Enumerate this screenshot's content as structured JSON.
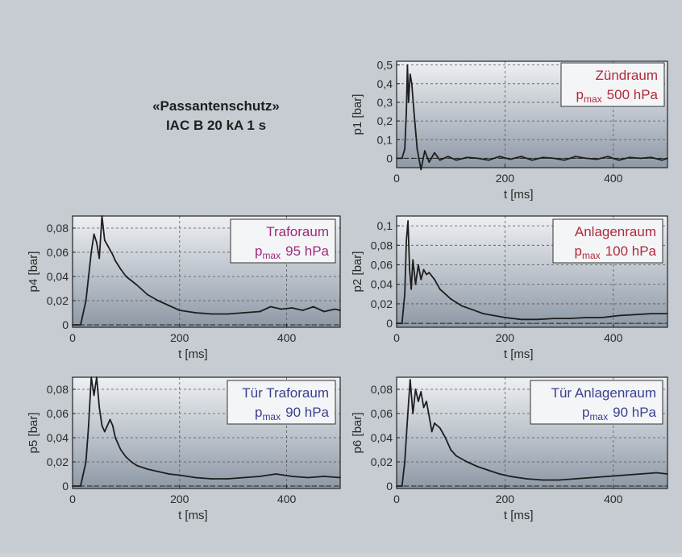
{
  "caption": {
    "title_line1": "«Passantenschutz»",
    "title_line2": "IAC B 20 kA 1 s"
  },
  "colors": {
    "page_background": "#c7ccd2",
    "plot_background_top": "#eef0f3",
    "plot_background_bottom": "#8e99a6",
    "trace": "#1e1e1e",
    "label_red": "#b02a3a",
    "label_magenta": "#a02a78",
    "label_blue": "#3a3f8f"
  },
  "chart_data": [
    {
      "type": "line",
      "ylabel": "p1 [bar]",
      "xlabel": "t [ms]",
      "xlim": [
        0,
        500
      ],
      "ylim": [
        -0.05,
        0.52
      ],
      "xticks": [
        0,
        200,
        400
      ],
      "xtick_labels": [
        "0",
        "200",
        "400"
      ],
      "yticks": [
        0,
        0.1,
        0.2,
        0.3,
        0.4,
        0.5
      ],
      "ytick_labels": [
        "0",
        "0,1",
        "0,2",
        "0,3",
        "0,4",
        "0,5"
      ],
      "grid": true,
      "room": "Zündraum",
      "pmax_prefix": "p",
      "pmax_sub": "max",
      "pmax_value": "500 hPa",
      "label_color": "#b02a3a",
      "x": [
        0,
        10,
        15,
        18,
        20,
        22,
        25,
        28,
        32,
        38,
        45,
        52,
        60,
        70,
        80,
        95,
        110,
        130,
        150,
        170,
        190,
        210,
        230,
        250,
        270,
        290,
        310,
        330,
        350,
        370,
        390,
        410,
        430,
        450,
        470,
        490,
        500
      ],
      "values": [
        0,
        0,
        0.05,
        0.25,
        0.5,
        0.3,
        0.45,
        0.4,
        0.25,
        0.05,
        -0.06,
        0.04,
        -0.02,
        0.03,
        -0.01,
        0.01,
        -0.01,
        0.005,
        0,
        -0.01,
        0.01,
        -0.005,
        0.01,
        -0.01,
        0.005,
        0,
        -0.01,
        0.01,
        0,
        -0.005,
        0.01,
        -0.01,
        0.005,
        0,
        0.005,
        -0.01,
        0
      ]
    },
    {
      "type": "line",
      "ylabel": "p4 [bar]",
      "xlabel": "t [ms]",
      "xlim": [
        0,
        500
      ],
      "ylim": [
        -0.002,
        0.09
      ],
      "xticks": [
        0,
        200,
        400
      ],
      "xtick_labels": [
        "0",
        "200",
        "400"
      ],
      "yticks": [
        0,
        0.02,
        0.04,
        0.06,
        0.08
      ],
      "ytick_labels": [
        "0",
        "0,02",
        "0,04",
        "0,06",
        "0,08"
      ],
      "grid": true,
      "room": "Traforaum",
      "pmax_prefix": "p",
      "pmax_sub": "max",
      "pmax_value": "95 hPa",
      "label_color": "#a02a78",
      "x": [
        0,
        15,
        25,
        35,
        40,
        45,
        50,
        55,
        60,
        65,
        70,
        75,
        80,
        90,
        100,
        120,
        140,
        160,
        180,
        200,
        230,
        260,
        290,
        320,
        350,
        370,
        390,
        410,
        430,
        450,
        470,
        490,
        500
      ],
      "values": [
        0,
        0,
        0.02,
        0.06,
        0.075,
        0.068,
        0.055,
        0.09,
        0.07,
        0.066,
        0.062,
        0.058,
        0.053,
        0.046,
        0.04,
        0.033,
        0.025,
        0.02,
        0.016,
        0.012,
        0.01,
        0.009,
        0.009,
        0.01,
        0.011,
        0.015,
        0.013,
        0.014,
        0.012,
        0.015,
        0.011,
        0.013,
        0.012
      ]
    },
    {
      "type": "line",
      "ylabel": "p2 [bar]",
      "xlabel": "t [ms]",
      "xlim": [
        0,
        500
      ],
      "ylim": [
        -0.004,
        0.11
      ],
      "xticks": [
        0,
        200,
        400
      ],
      "xtick_labels": [
        "0",
        "200",
        "400"
      ],
      "yticks": [
        0,
        0.02,
        0.04,
        0.06,
        0.08,
        0.1
      ],
      "ytick_labels": [
        "0",
        "0,02",
        "0,04",
        "0,06",
        "0,08",
        "0,1"
      ],
      "grid": true,
      "room": "Anlagenraum",
      "pmax_prefix": "p",
      "pmax_sub": "max",
      "pmax_value": "100 hPa",
      "label_color": "#b02a3a",
      "x": [
        0,
        10,
        15,
        18,
        21,
        24,
        27,
        30,
        35,
        40,
        45,
        50,
        55,
        60,
        70,
        80,
        90,
        100,
        120,
        140,
        160,
        180,
        200,
        230,
        260,
        290,
        320,
        350,
        380,
        410,
        440,
        470,
        500
      ],
      "values": [
        0,
        0,
        0.03,
        0.085,
        0.105,
        0.055,
        0.035,
        0.065,
        0.04,
        0.06,
        0.045,
        0.055,
        0.05,
        0.052,
        0.045,
        0.035,
        0.03,
        0.025,
        0.018,
        0.014,
        0.01,
        0.008,
        0.006,
        0.004,
        0.004,
        0.005,
        0.005,
        0.006,
        0.006,
        0.008,
        0.009,
        0.01,
        0.01
      ]
    },
    {
      "type": "line",
      "ylabel": "p5 [bar]",
      "xlabel": "t [ms]",
      "xlim": [
        0,
        500
      ],
      "ylim": [
        -0.002,
        0.09
      ],
      "xticks": [
        0,
        200,
        400
      ],
      "xtick_labels": [
        "0",
        "200",
        "400"
      ],
      "yticks": [
        0,
        0.02,
        0.04,
        0.06,
        0.08
      ],
      "ytick_labels": [
        "0",
        "0,02",
        "0,04",
        "0,06",
        "0,08"
      ],
      "grid": true,
      "room": "Tür Traforaum",
      "pmax_prefix": "p",
      "pmax_sub": "max",
      "pmax_value": "90 hPa",
      "label_color": "#3a3f8f",
      "x": [
        0,
        15,
        25,
        30,
        35,
        40,
        45,
        50,
        55,
        60,
        65,
        70,
        75,
        80,
        85,
        90,
        100,
        110,
        120,
        140,
        160,
        180,
        200,
        230,
        260,
        290,
        320,
        350,
        380,
        410,
        440,
        470,
        500
      ],
      "values": [
        0,
        0,
        0.02,
        0.05,
        0.09,
        0.075,
        0.09,
        0.065,
        0.05,
        0.045,
        0.05,
        0.055,
        0.05,
        0.04,
        0.035,
        0.03,
        0.024,
        0.02,
        0.017,
        0.014,
        0.012,
        0.01,
        0.009,
        0.007,
        0.006,
        0.006,
        0.007,
        0.008,
        0.01,
        0.008,
        0.007,
        0.008,
        0.007
      ]
    },
    {
      "type": "line",
      "ylabel": "p6 [bar]",
      "xlabel": "t [ms]",
      "xlim": [
        0,
        500
      ],
      "ylim": [
        -0.002,
        0.09
      ],
      "xticks": [
        0,
        200,
        400
      ],
      "xtick_labels": [
        "0",
        "200",
        "400"
      ],
      "yticks": [
        0,
        0.02,
        0.04,
        0.06,
        0.08
      ],
      "ytick_labels": [
        "0",
        "0,02",
        "0,04",
        "0,06",
        "0,08"
      ],
      "grid": true,
      "room": "Tür Anlagenraum",
      "pmax_prefix": "p",
      "pmax_sub": "max",
      "pmax_value": "90 hPa",
      "label_color": "#3a3f8f",
      "x": [
        0,
        10,
        15,
        20,
        25,
        30,
        35,
        40,
        45,
        50,
        55,
        60,
        65,
        70,
        80,
        90,
        100,
        110,
        130,
        150,
        170,
        190,
        210,
        240,
        270,
        300,
        330,
        360,
        390,
        420,
        450,
        480,
        500
      ],
      "values": [
        0,
        0,
        0.02,
        0.055,
        0.088,
        0.06,
        0.08,
        0.07,
        0.078,
        0.065,
        0.07,
        0.058,
        0.045,
        0.052,
        0.048,
        0.04,
        0.03,
        0.025,
        0.02,
        0.016,
        0.013,
        0.01,
        0.008,
        0.006,
        0.005,
        0.005,
        0.006,
        0.007,
        0.008,
        0.009,
        0.01,
        0.011,
        0.01
      ]
    }
  ]
}
